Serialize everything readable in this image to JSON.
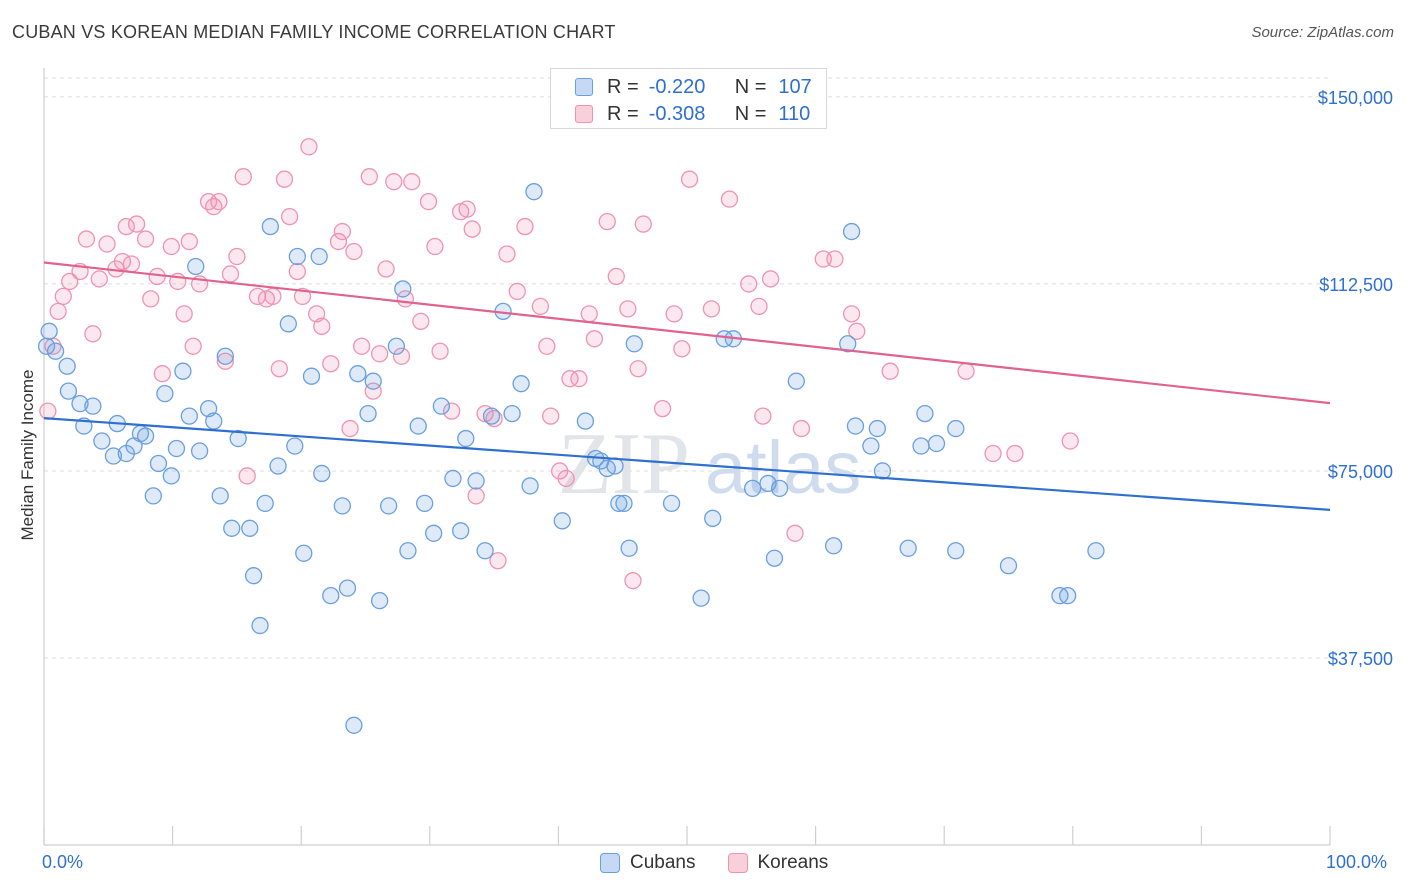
{
  "title": "CUBAN VS KOREAN MEDIAN FAMILY INCOME CORRELATION CHART",
  "source": "Source: ZipAtlas.com",
  "watermark": {
    "part1": "ZIP",
    "part2": "atlas"
  },
  "legend_top": [
    {
      "r_label": "R = ",
      "r_value": "-0.220",
      "n_label": "N = ",
      "n_value": "107"
    },
    {
      "r_label": "R = ",
      "r_value": "-0.308",
      "n_label": "N = ",
      "n_value": "110"
    }
  ],
  "x_min_label": "0.0%",
  "x_max_label": "100.0%",
  "colors": {
    "cubans": "#6a9fdf",
    "koreans": "#ef93b1",
    "cubans_line": "#2f6fd0",
    "koreans_line": "#e0628e",
    "axis_label": "#2f6fd0"
  },
  "chart_data": {
    "type": "scatter",
    "title": "CUBAN VS KOREAN MEDIAN FAMILY INCOME CORRELATION CHART",
    "xlabel": "",
    "ylabel": "Median Family Income",
    "xlim": [
      0,
      100
    ],
    "ylim": [
      0,
      157000
    ],
    "y_ticks": [
      37500,
      75000,
      112500,
      150000
    ],
    "y_tick_labels": [
      "$37,500",
      "$75,000",
      "$112,500",
      "$150,000"
    ],
    "grid": true,
    "legend": "bottom",
    "series": [
      {
        "name": "Cubans",
        "color": "#6a9fdf",
        "trend": {
          "x": [
            0,
            100
          ],
          "y": [
            85600,
            67200
          ]
        },
        "points": [
          [
            0.4,
            103000
          ],
          [
            0.9,
            99000
          ],
          [
            1.8,
            96000
          ],
          [
            1.9,
            91000
          ],
          [
            2.8,
            88500
          ],
          [
            3.1,
            84000
          ],
          [
            3.8,
            88000
          ],
          [
            4.5,
            81000
          ],
          [
            5.4,
            78000
          ],
          [
            5.7,
            84500
          ],
          [
            6.4,
            78500
          ],
          [
            7.0,
            80000
          ],
          [
            7.5,
            82500
          ],
          [
            7.9,
            82000
          ],
          [
            8.5,
            70000
          ],
          [
            8.9,
            76500
          ],
          [
            9.4,
            90500
          ],
          [
            9.9,
            74000
          ],
          [
            10.3,
            79500
          ],
          [
            10.8,
            95000
          ],
          [
            11.3,
            86000
          ],
          [
            11.8,
            116000
          ],
          [
            12.1,
            79000
          ],
          [
            12.8,
            87500
          ],
          [
            13.2,
            85000
          ],
          [
            13.7,
            70000
          ],
          [
            14.1,
            98000
          ],
          [
            14.6,
            63500
          ],
          [
            15.1,
            81500
          ],
          [
            16.0,
            63500
          ],
          [
            16.3,
            54000
          ],
          [
            16.8,
            44000
          ],
          [
            17.2,
            68500
          ],
          [
            17.6,
            124000
          ],
          [
            18.2,
            76000
          ],
          [
            19.0,
            104500
          ],
          [
            19.5,
            80000
          ],
          [
            19.7,
            118000
          ],
          [
            20.2,
            58500
          ],
          [
            20.8,
            94000
          ],
          [
            21.4,
            118000
          ],
          [
            21.6,
            74500
          ],
          [
            22.3,
            50000
          ],
          [
            23.2,
            68000
          ],
          [
            23.6,
            51500
          ],
          [
            24.1,
            24000
          ],
          [
            24.4,
            94500
          ],
          [
            25.2,
            86500
          ],
          [
            25.6,
            93000
          ],
          [
            26.1,
            49000
          ],
          [
            26.8,
            68000
          ],
          [
            27.4,
            100000
          ],
          [
            27.9,
            111500
          ],
          [
            28.3,
            59000
          ],
          [
            29.1,
            84000
          ],
          [
            29.6,
            68500
          ],
          [
            30.3,
            62500
          ],
          [
            30.9,
            88000
          ],
          [
            31.8,
            73500
          ],
          [
            32.4,
            63000
          ],
          [
            32.8,
            81500
          ],
          [
            33.6,
            73000
          ],
          [
            34.3,
            59000
          ],
          [
            34.8,
            86000
          ],
          [
            35.7,
            107000
          ],
          [
            36.4,
            86500
          ],
          [
            37.1,
            92500
          ],
          [
            37.8,
            72000
          ],
          [
            38.1,
            131000
          ],
          [
            40.3,
            65000
          ],
          [
            42.1,
            85000
          ],
          [
            42.9,
            77500
          ],
          [
            43.3,
            77000
          ],
          [
            43.8,
            75500
          ],
          [
            44.4,
            76000
          ],
          [
            44.7,
            68500
          ],
          [
            45.1,
            68500
          ],
          [
            45.5,
            59500
          ],
          [
            45.9,
            100500
          ],
          [
            48.8,
            68500
          ],
          [
            51.1,
            49500
          ],
          [
            52.0,
            65500
          ],
          [
            52.9,
            101500
          ],
          [
            53.6,
            101500
          ],
          [
            55.1,
            71500
          ],
          [
            56.3,
            72500
          ],
          [
            56.8,
            57500
          ],
          [
            57.2,
            71500
          ],
          [
            58.5,
            93000
          ],
          [
            61.4,
            60000
          ],
          [
            62.5,
            100500
          ],
          [
            62.8,
            123000
          ],
          [
            63.1,
            84000
          ],
          [
            64.3,
            80000
          ],
          [
            64.8,
            83500
          ],
          [
            65.2,
            75000
          ],
          [
            67.2,
            59500
          ],
          [
            68.2,
            80000
          ],
          [
            68.5,
            86500
          ],
          [
            69.4,
            80500
          ],
          [
            70.9,
            83500
          ],
          [
            70.9,
            59000
          ],
          [
            75.0,
            56000
          ],
          [
            79.0,
            50000
          ],
          [
            79.6,
            50000
          ],
          [
            81.8,
            59000
          ],
          [
            0.2,
            100000
          ]
        ]
      },
      {
        "name": "Koreans",
        "color": "#ef93b1",
        "trend": {
          "x": [
            0,
            100
          ],
          "y": [
            116800,
            88600
          ]
        },
        "points": [
          [
            0.3,
            87000
          ],
          [
            0.7,
            100000
          ],
          [
            1.1,
            107000
          ],
          [
            1.5,
            110000
          ],
          [
            2.0,
            113000
          ],
          [
            2.8,
            115000
          ],
          [
            3.3,
            121500
          ],
          [
            3.8,
            102500
          ],
          [
            4.3,
            113500
          ],
          [
            4.9,
            120500
          ],
          [
            5.6,
            115500
          ],
          [
            6.1,
            117000
          ],
          [
            6.4,
            124000
          ],
          [
            6.8,
            116500
          ],
          [
            7.2,
            124500
          ],
          [
            7.9,
            121500
          ],
          [
            8.3,
            109500
          ],
          [
            8.8,
            114000
          ],
          [
            9.2,
            94500
          ],
          [
            9.9,
            120000
          ],
          [
            10.4,
            113000
          ],
          [
            10.9,
            106500
          ],
          [
            11.3,
            121000
          ],
          [
            11.6,
            100000
          ],
          [
            12.1,
            112500
          ],
          [
            12.8,
            129000
          ],
          [
            13.2,
            128000
          ],
          [
            13.6,
            129000
          ],
          [
            14.1,
            97000
          ],
          [
            14.5,
            114500
          ],
          [
            15.0,
            118000
          ],
          [
            15.5,
            134000
          ],
          [
            15.8,
            74000
          ],
          [
            16.6,
            110000
          ],
          [
            17.3,
            109500
          ],
          [
            17.8,
            110000
          ],
          [
            18.3,
            95500
          ],
          [
            18.7,
            133500
          ],
          [
            19.1,
            126000
          ],
          [
            19.7,
            115000
          ],
          [
            20.1,
            110000
          ],
          [
            20.6,
            140000
          ],
          [
            21.2,
            106500
          ],
          [
            21.6,
            104000
          ],
          [
            22.3,
            96500
          ],
          [
            22.9,
            121000
          ],
          [
            23.2,
            123000
          ],
          [
            23.8,
            83500
          ],
          [
            24.1,
            119000
          ],
          [
            24.7,
            100000
          ],
          [
            25.3,
            134000
          ],
          [
            25.6,
            91000
          ],
          [
            26.1,
            98500
          ],
          [
            26.6,
            115500
          ],
          [
            27.2,
            133000
          ],
          [
            27.8,
            98000
          ],
          [
            28.1,
            109500
          ],
          [
            28.6,
            133000
          ],
          [
            29.3,
            105000
          ],
          [
            29.9,
            129000
          ],
          [
            30.4,
            120000
          ],
          [
            30.8,
            99000
          ],
          [
            31.7,
            87000
          ],
          [
            32.4,
            127000
          ],
          [
            32.9,
            127500
          ],
          [
            33.3,
            123500
          ],
          [
            33.6,
            70000
          ],
          [
            34.3,
            86500
          ],
          [
            35.0,
            85500
          ],
          [
            35.3,
            57000
          ],
          [
            36.0,
            118500
          ],
          [
            36.8,
            111000
          ],
          [
            37.4,
            124000
          ],
          [
            38.6,
            108000
          ],
          [
            39.1,
            100000
          ],
          [
            39.4,
            86000
          ],
          [
            40.1,
            75000
          ],
          [
            40.6,
            73500
          ],
          [
            40.9,
            93500
          ],
          [
            41.6,
            93500
          ],
          [
            42.4,
            106500
          ],
          [
            42.8,
            101500
          ],
          [
            43.8,
            125000
          ],
          [
            44.5,
            114000
          ],
          [
            45.4,
            107500
          ],
          [
            45.8,
            53000
          ],
          [
            46.2,
            95500
          ],
          [
            46.6,
            124500
          ],
          [
            48.1,
            87500
          ],
          [
            49.0,
            106500
          ],
          [
            49.6,
            99500
          ],
          [
            50.2,
            133500
          ],
          [
            50.9,
            148000
          ],
          [
            51.9,
            107500
          ],
          [
            53.3,
            129500
          ],
          [
            54.8,
            112500
          ],
          [
            55.6,
            108000
          ],
          [
            55.9,
            86000
          ],
          [
            56.5,
            113500
          ],
          [
            58.4,
            62500
          ],
          [
            58.9,
            83500
          ],
          [
            60.6,
            117500
          ],
          [
            61.5,
            117500
          ],
          [
            62.8,
            106500
          ],
          [
            63.2,
            103000
          ],
          [
            65.8,
            95000
          ],
          [
            71.7,
            95000
          ],
          [
            73.8,
            78500
          ],
          [
            75.5,
            78500
          ],
          [
            79.8,
            81000
          ]
        ]
      }
    ]
  }
}
